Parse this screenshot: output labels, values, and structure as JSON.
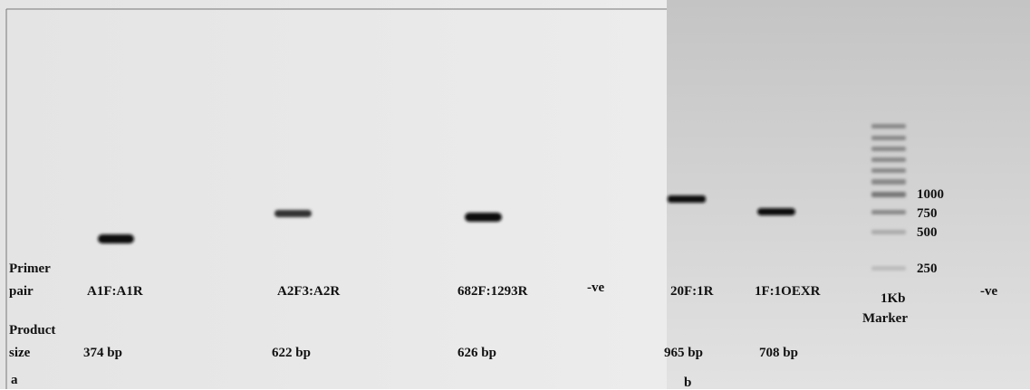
{
  "panels": [
    {
      "letter": "a",
      "row_labels": {
        "primer": [
          "Primer",
          "pair"
        ],
        "product": [
          "Product",
          "size"
        ]
      },
      "lanes": [
        {
          "primer": "A1F:A1R",
          "size": "374 bp"
        },
        {
          "primer": "A2F3:A2R",
          "size": "622 bp"
        },
        {
          "primer": "682F:1293R",
          "size": "626 bp"
        },
        {
          "primer": "-ve"
        }
      ]
    },
    {
      "letter": "b",
      "lanes": [
        {
          "primer": "20F:1R",
          "size": "965 bp"
        },
        {
          "primer": "1F:1OEXR",
          "size": "708 bp"
        },
        {
          "primer": [
            "1Kb",
            "Marker"
          ]
        },
        {
          "primer": "-ve"
        }
      ],
      "marker_labels": [
        "1000",
        "750",
        "500",
        "250"
      ]
    }
  ]
}
